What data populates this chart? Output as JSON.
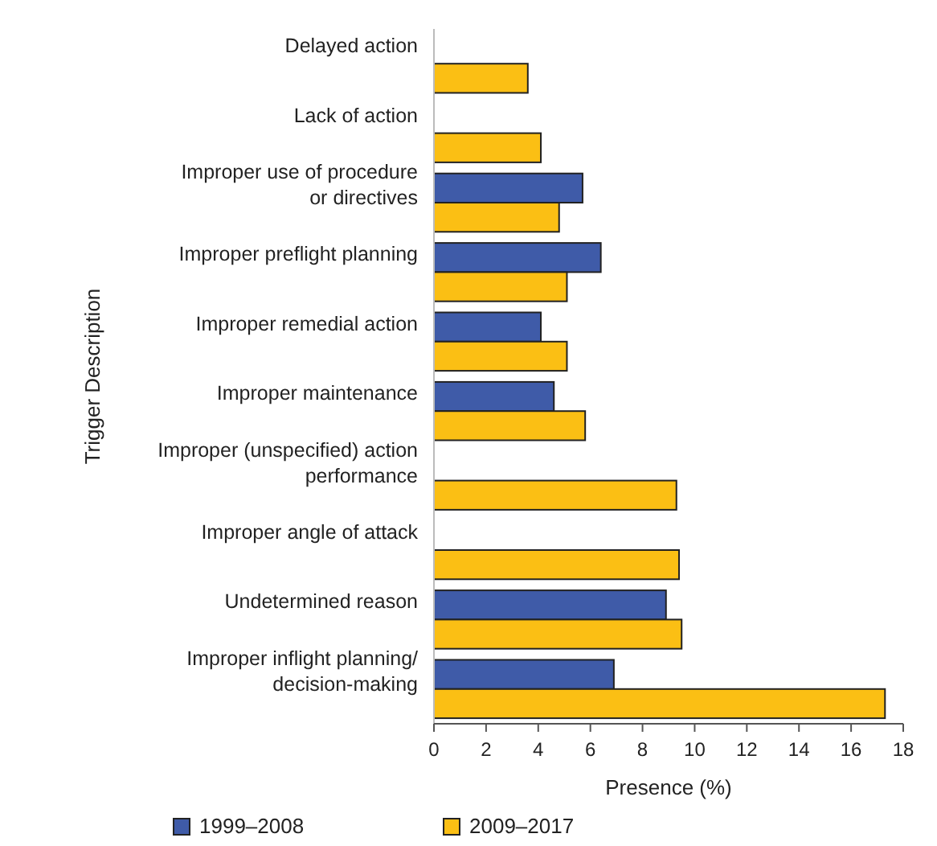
{
  "chart_data": {
    "type": "bar",
    "orientation": "horizontal",
    "xlabel": "Presence (%)",
    "ylabel": "Trigger Description",
    "categories": [
      "Delayed action",
      "Lack of action",
      "Improper use of procedure or directives",
      "Improper preflight planning",
      "Improper remedial action",
      "Improper maintenance",
      "Improper (unspecified) action performance",
      "Improper angle of attack",
      "Undetermined reason",
      "Improper inflight planning/decision-making"
    ],
    "series": [
      {
        "name": "1999–2008",
        "color": "#3f5ba8",
        "values": [
          null,
          null,
          5.7,
          6.4,
          4.1,
          4.6,
          null,
          null,
          8.9,
          6.9
        ]
      },
      {
        "name": "2009–2017",
        "color": "#fbbf14",
        "values": [
          3.6,
          4.1,
          4.8,
          5.1,
          5.1,
          5.8,
          9.3,
          9.4,
          9.5,
          17.3
        ]
      }
    ],
    "xlim": [
      0,
      18
    ],
    "xticks": [
      0,
      2,
      4,
      6,
      8,
      10,
      12,
      14,
      16,
      18
    ],
    "grid": false,
    "legend": "bottom"
  }
}
